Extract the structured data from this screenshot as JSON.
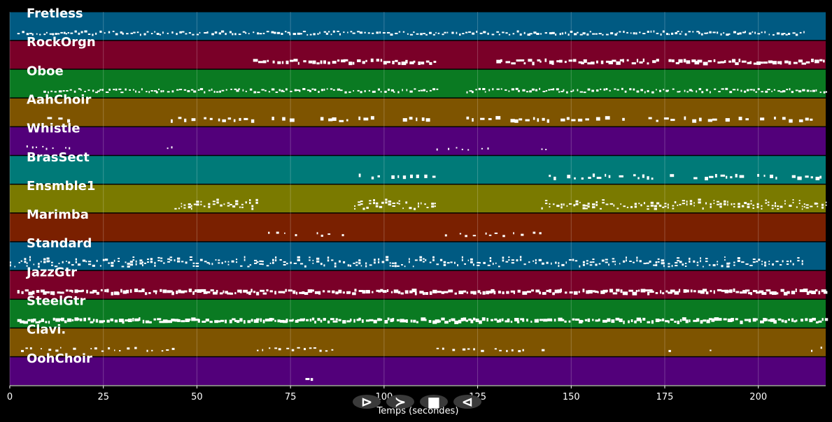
{
  "chart_data": {
    "type": "piano-roll",
    "xlabel": "Temps (secondes)",
    "xlim": [
      0,
      218
    ],
    "x_ticks": [
      0,
      25,
      50,
      75,
      100,
      125,
      150,
      175,
      200
    ],
    "grid": true,
    "tracks": [
      {
        "name": "Fretless",
        "color": "#005a82",
        "segments": [
          [
            2,
            213
          ]
        ],
        "density": "dense",
        "style": "line"
      },
      {
        "name": "RockOrgn",
        "color": "#7a0028",
        "segments": [
          [
            65,
            114
          ],
          [
            130,
            173
          ],
          [
            176,
            218
          ]
        ],
        "density": "medium",
        "style": "thick"
      },
      {
        "name": "Oboe",
        "color": "#0a7a22",
        "segments": [
          [
            9,
            114
          ],
          [
            122,
            218
          ]
        ],
        "density": "dense",
        "style": "line"
      },
      {
        "name": "AahChoir",
        "color": "#7e5400",
        "segments": [
          [
            10,
            17
          ],
          [
            43,
            66
          ],
          [
            70,
            75
          ],
          [
            83,
            114
          ],
          [
            122,
            218
          ]
        ],
        "density": "sparse",
        "style": "thick"
      },
      {
        "name": "Whistle",
        "color": "#52007a",
        "segments": [
          [
            3,
            16
          ],
          [
            42,
            44
          ],
          [
            90,
            92
          ],
          [
            114,
            128
          ],
          [
            142,
            144
          ]
        ],
        "density": "sparse",
        "style": "dots"
      },
      {
        "name": "BrasSect",
        "color": "#007a78",
        "segments": [
          [
            92,
            114
          ],
          [
            144,
            218
          ]
        ],
        "density": "sparse",
        "style": "thick"
      },
      {
        "name": "Ensmble1",
        "color": "#7a7a00",
        "segments": [
          [
            44,
            66
          ],
          [
            92,
            114
          ],
          [
            142,
            218
          ]
        ],
        "density": "dense",
        "style": "stacked"
      },
      {
        "name": "Marimba",
        "color": "#7a2000",
        "segments": [
          [
            69,
            79
          ],
          [
            82,
            92
          ],
          [
            115,
            142
          ]
        ],
        "density": "sparse",
        "style": "line"
      },
      {
        "name": "Standard",
        "color": "#005a82",
        "segments": [
          [
            0,
            212
          ]
        ],
        "density": "dense",
        "style": "stacked"
      },
      {
        "name": "JazzGtr",
        "color": "#7a0028",
        "segments": [
          [
            2,
            218
          ]
        ],
        "density": "dense",
        "style": "thick"
      },
      {
        "name": "SteelGtr",
        "color": "#0a7a22",
        "segments": [
          [
            2,
            218
          ]
        ],
        "density": "dense",
        "style": "thick"
      },
      {
        "name": "Clavi.",
        "color": "#7e5400",
        "segments": [
          [
            3,
            45
          ],
          [
            66,
            90
          ],
          [
            114,
            145
          ],
          [
            155,
            156
          ],
          [
            176,
            177
          ],
          [
            187,
            188
          ],
          [
            210,
            218
          ]
        ],
        "density": "sparse",
        "style": "line"
      },
      {
        "name": "OohChoir",
        "color": "#52007a",
        "segments": [
          [
            79,
            83
          ]
        ],
        "density": "sparse",
        "style": "thick"
      }
    ]
  },
  "controls": [
    {
      "name": "rewind",
      "glyph": "⊳"
    },
    {
      "name": "play",
      "glyph": "≻"
    },
    {
      "name": "stop",
      "glyph": "■"
    },
    {
      "name": "forward",
      "glyph": "⊲"
    }
  ]
}
